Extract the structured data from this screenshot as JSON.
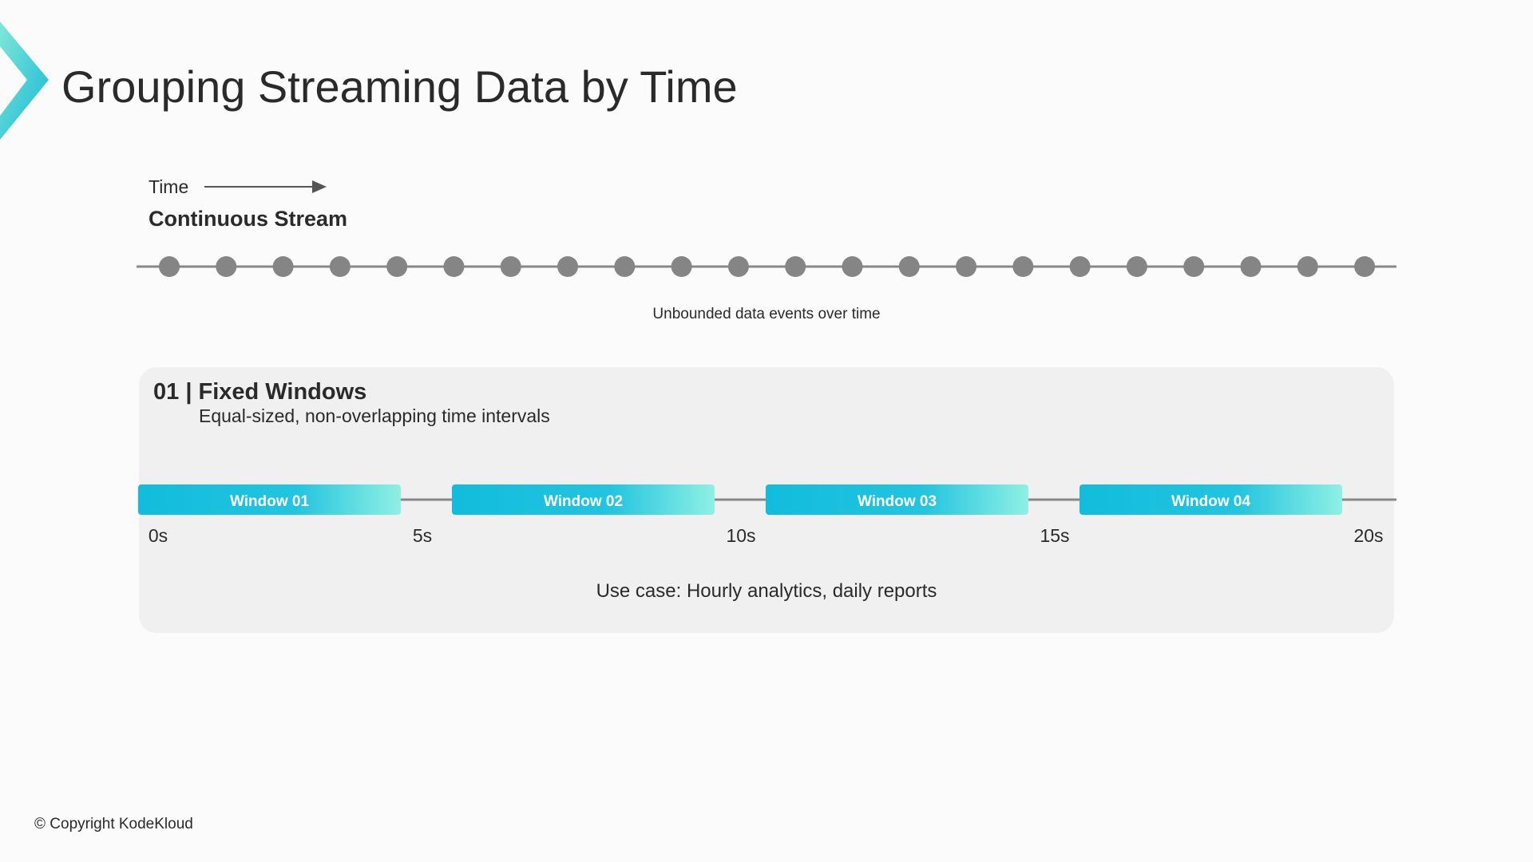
{
  "header": {
    "title": "Grouping Streaming Data by Time"
  },
  "stream": {
    "time_label": "Time",
    "title": "Continuous Stream",
    "caption": "Unbounded data events over time"
  },
  "section": {
    "title": "01 | Fixed Windows",
    "subtitle": "Equal-sized, non-overlapping time intervals",
    "windows": [
      "Window 01",
      "Window 02",
      "Window 03",
      "Window 04"
    ],
    "ticks": [
      "0s",
      "5s",
      "10s",
      "15s",
      "20s"
    ],
    "use_case": "Use case: Hourly analytics, daily reports"
  },
  "footer": {
    "copyright": "© Copyright KodeKloud"
  }
}
